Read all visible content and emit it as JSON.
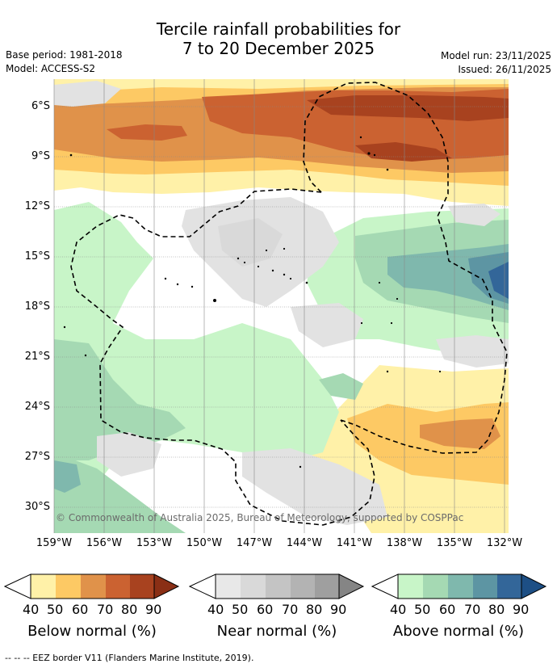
{
  "title_line1": "Tercile rainfall probabilities for",
  "title_line2": "7 to 20 December 2025",
  "base_period": "Base period: 1981-2018",
  "model": "Model: ACCESS-S2",
  "model_run": "Model run: 23/11/2025",
  "issued": "Issued: 26/11/2025",
  "lat_labels": [
    "6°S",
    "9°S",
    "12°S",
    "15°S",
    "18°S",
    "21°S",
    "24°S",
    "27°S",
    "30°S"
  ],
  "lon_labels": [
    "159°W",
    "156°W",
    "153°W",
    "150°W",
    "147°W",
    "144°W",
    "141°W",
    "138°W",
    "135°W",
    "132°W"
  ],
  "copyright": "© Commonwealth of Australia 2025, Bureau of Meteorology, supported by COSPPac",
  "footer": "--  --  -- EEZ border V11 (Flanders Marine Institute, 2019).",
  "colorbars": [
    {
      "title": "Below normal (%)",
      "ticks": [
        "40",
        "50",
        "60",
        "70",
        "80",
        "90"
      ],
      "colors": [
        "#fff1a8",
        "#fdc964",
        "#e0924a",
        "#cb6231",
        "#a8421f",
        "#8a2f15"
      ]
    },
    {
      "title": "Near normal (%)",
      "ticks": [
        "40",
        "50",
        "60",
        "70",
        "80",
        "90"
      ],
      "colors": [
        "#e8e8e8",
        "#d9d9d9",
        "#c4c4c4",
        "#b3b3b3",
        "#9f9f9f",
        "#858585"
      ]
    },
    {
      "title": "Above normal (%)",
      "ticks": [
        "40",
        "50",
        "60",
        "70",
        "80",
        "90"
      ],
      "colors": [
        "#c8f5c8",
        "#a5d9b3",
        "#7fb8ad",
        "#5d95a3",
        "#336699",
        "#1d4f85"
      ]
    }
  ]
}
